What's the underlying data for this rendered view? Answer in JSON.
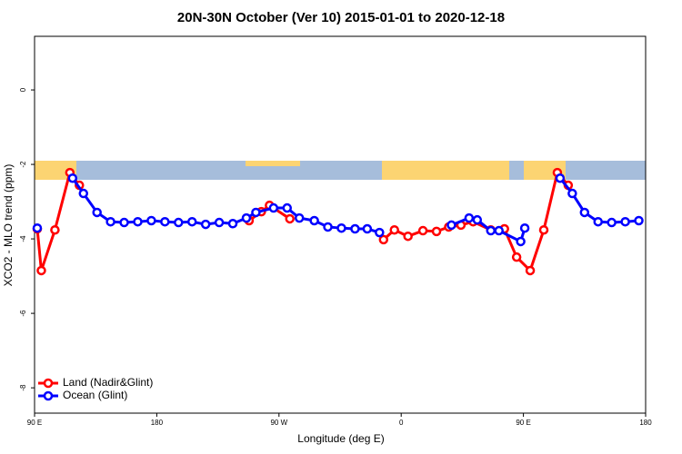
{
  "chart_data": {
    "type": "line",
    "title": "20N-30N October (Ver 10)   2015-01-01 to 2020-12-18",
    "xlabel": "Longitude (deg E)",
    "ylabel": "XCO2 - MLO trend (ppm)",
    "xlim": [
      90,
      540
    ],
    "ylim": [
      -8.68,
      1.44
    ],
    "xticks": [
      {
        "value": 90,
        "label": "90 E"
      },
      {
        "value": 180,
        "label": "180"
      },
      {
        "value": 270,
        "label": "90 W"
      },
      {
        "value": 360,
        "label": "0"
      },
      {
        "value": 450,
        "label": "90 E"
      },
      {
        "value": 540,
        "label": "180"
      }
    ],
    "yticks": [
      0,
      -2,
      -4,
      -6,
      -8
    ],
    "legend": "bottom-left",
    "series": [
      {
        "name": "Land (Nadir&Glint)",
        "color": "#ff0000",
        "x": [
          92,
          95,
          105,
          116,
          123,
          null,
          248,
          257,
          263,
          278,
          null,
          347,
          355,
          365,
          376,
          386,
          395,
          404,
          413,
          426,
          436,
          445,
          455,
          465,
          475,
          483
        ],
        "values": [
          -3.73,
          -4.85,
          -3.76,
          -2.22,
          -2.56,
          null,
          -3.51,
          -3.27,
          -3.1,
          -3.46,
          null,
          -4.02,
          -3.76,
          -3.93,
          -3.78,
          -3.8,
          -3.68,
          -3.63,
          -3.54,
          -3.76,
          -3.73,
          -4.49,
          -4.85,
          -3.76,
          -2.22,
          -2.56
        ]
      },
      {
        "name": "Ocean (Glint)",
        "color": "#0000ff",
        "x": [
          92,
          null,
          118,
          126,
          136,
          146,
          156,
          166,
          176,
          186,
          196,
          206,
          216,
          226,
          236,
          246,
          253,
          266,
          276,
          285,
          296,
          306,
          316,
          326,
          335,
          344,
          null,
          397,
          410,
          416,
          426,
          432,
          448,
          451,
          null,
          477,
          486,
          495,
          505,
          515,
          525,
          535
        ],
        "values": [
          -3.71,
          null,
          -2.37,
          -2.78,
          -3.29,
          -3.54,
          -3.56,
          -3.54,
          -3.51,
          -3.54,
          -3.56,
          -3.54,
          -3.61,
          -3.56,
          -3.59,
          -3.44,
          -3.29,
          -3.17,
          -3.17,
          -3.44,
          -3.51,
          -3.68,
          -3.71,
          -3.73,
          -3.73,
          -3.83,
          null,
          -3.63,
          -3.44,
          -3.49,
          -3.78,
          -3.78,
          -4.07,
          -3.71,
          null,
          -2.37,
          -2.78,
          -3.29,
          -3.54,
          -3.56,
          -3.54,
          -3.51
        ]
      }
    ]
  }
}
